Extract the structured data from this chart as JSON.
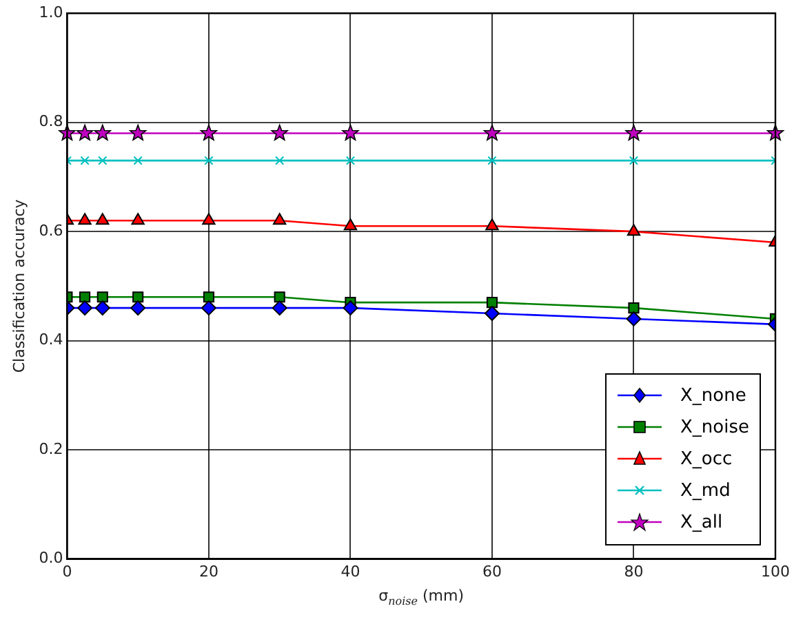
{
  "chart_data": {
    "type": "line",
    "xlabel": "σ$_{noise}$ (mm)",
    "ylabel": "Classification accuracy",
    "x": [
      0,
      2.5,
      5,
      10,
      20,
      30,
      40,
      60,
      80,
      100
    ],
    "xlim": [
      0,
      100
    ],
    "xticks": [
      0,
      20,
      40,
      60,
      80,
      100
    ],
    "ylim": [
      0,
      1
    ],
    "yticks": [
      {
        "value": 0,
        "label": "0.0"
      },
      {
        "value": 0.2,
        "label": "0.2"
      },
      {
        "value": 0.4,
        "label": "0.4"
      },
      {
        "value": 0.6,
        "label": "0.6"
      },
      {
        "value": 0.8,
        "label": "0.8"
      },
      {
        "value": 1,
        "label": "1.0"
      }
    ],
    "grid": true,
    "legend": "bottom right",
    "line_style": "solid",
    "series": [
      {
        "name": "X_none",
        "color": "#0000ff",
        "marker": "diamond",
        "values": [
          0.46,
          0.46,
          0.46,
          0.46,
          0.46,
          0.46,
          0.46,
          0.45,
          0.44,
          0.43
        ]
      },
      {
        "name": "X_noise",
        "color": "#008000",
        "marker": "square",
        "values": [
          0.48,
          0.48,
          0.48,
          0.48,
          0.48,
          0.48,
          0.47,
          0.47,
          0.46,
          0.44
        ]
      },
      {
        "name": "X_occ",
        "color": "#ff0000",
        "marker": "triangle",
        "values": [
          0.62,
          0.62,
          0.62,
          0.62,
          0.62,
          0.62,
          0.61,
          0.61,
          0.6,
          0.58
        ]
      },
      {
        "name": "X_md",
        "color": "#00bfbf",
        "marker": "cross",
        "values": [
          0.73,
          0.73,
          0.73,
          0.73,
          0.73,
          0.73,
          0.73,
          0.73,
          0.73,
          0.73
        ]
      },
      {
        "name": "X_all",
        "color": "#bf00bf",
        "marker": "star",
        "values": [
          0.78,
          0.78,
          0.78,
          0.78,
          0.78,
          0.78,
          0.78,
          0.78,
          0.78,
          0.78
        ]
      }
    ]
  }
}
